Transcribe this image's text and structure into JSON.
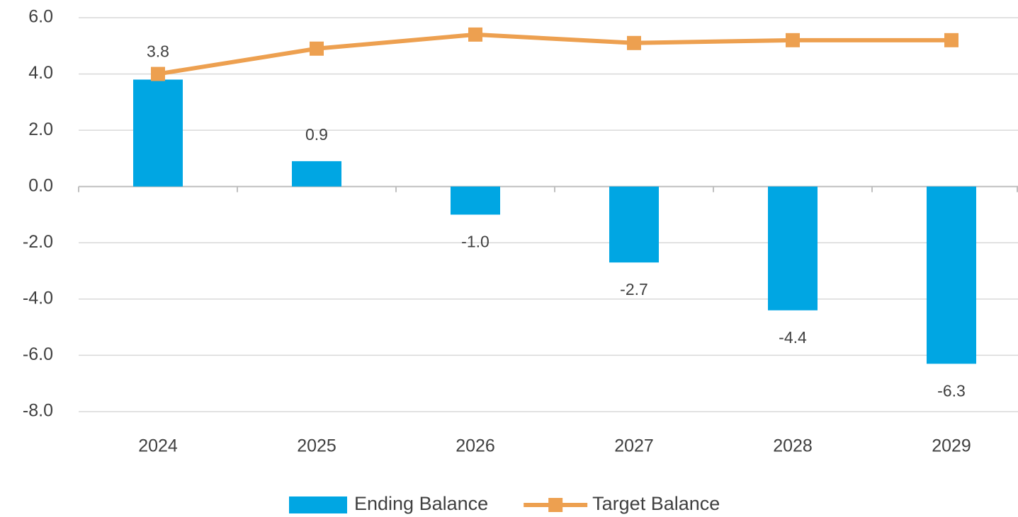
{
  "chart_data": {
    "type": "bar-line",
    "categories": [
      "2024",
      "2025",
      "2026",
      "2027",
      "2028",
      "2029"
    ],
    "series": [
      {
        "name": "Ending Balance",
        "type": "bar",
        "color": "#00a6e3",
        "values": [
          3.8,
          0.9,
          -1.0,
          -2.7,
          -4.4,
          -6.3
        ],
        "value_labels": [
          "3.8",
          "0.9",
          "-1.0",
          "-2.7",
          "-4.4",
          "-6.3"
        ]
      },
      {
        "name": "Target Balance",
        "type": "line",
        "color": "#eda050",
        "values": [
          4.0,
          4.9,
          5.4,
          5.1,
          5.2,
          5.2
        ]
      }
    ],
    "ylim": [
      -8,
      6
    ],
    "yticks": [
      {
        "value": -8,
        "label": "-8.0"
      },
      {
        "value": -6,
        "label": "-6.0"
      },
      {
        "value": -4,
        "label": "-4.0"
      },
      {
        "value": -2,
        "label": "-2.0"
      },
      {
        "value": 0,
        "label": "0.0"
      },
      {
        "value": 2,
        "label": "2.0"
      },
      {
        "value": 4,
        "label": "4.0"
      },
      {
        "value": 6,
        "label": "6.0"
      }
    ],
    "grid": true,
    "legend": "bottom"
  }
}
